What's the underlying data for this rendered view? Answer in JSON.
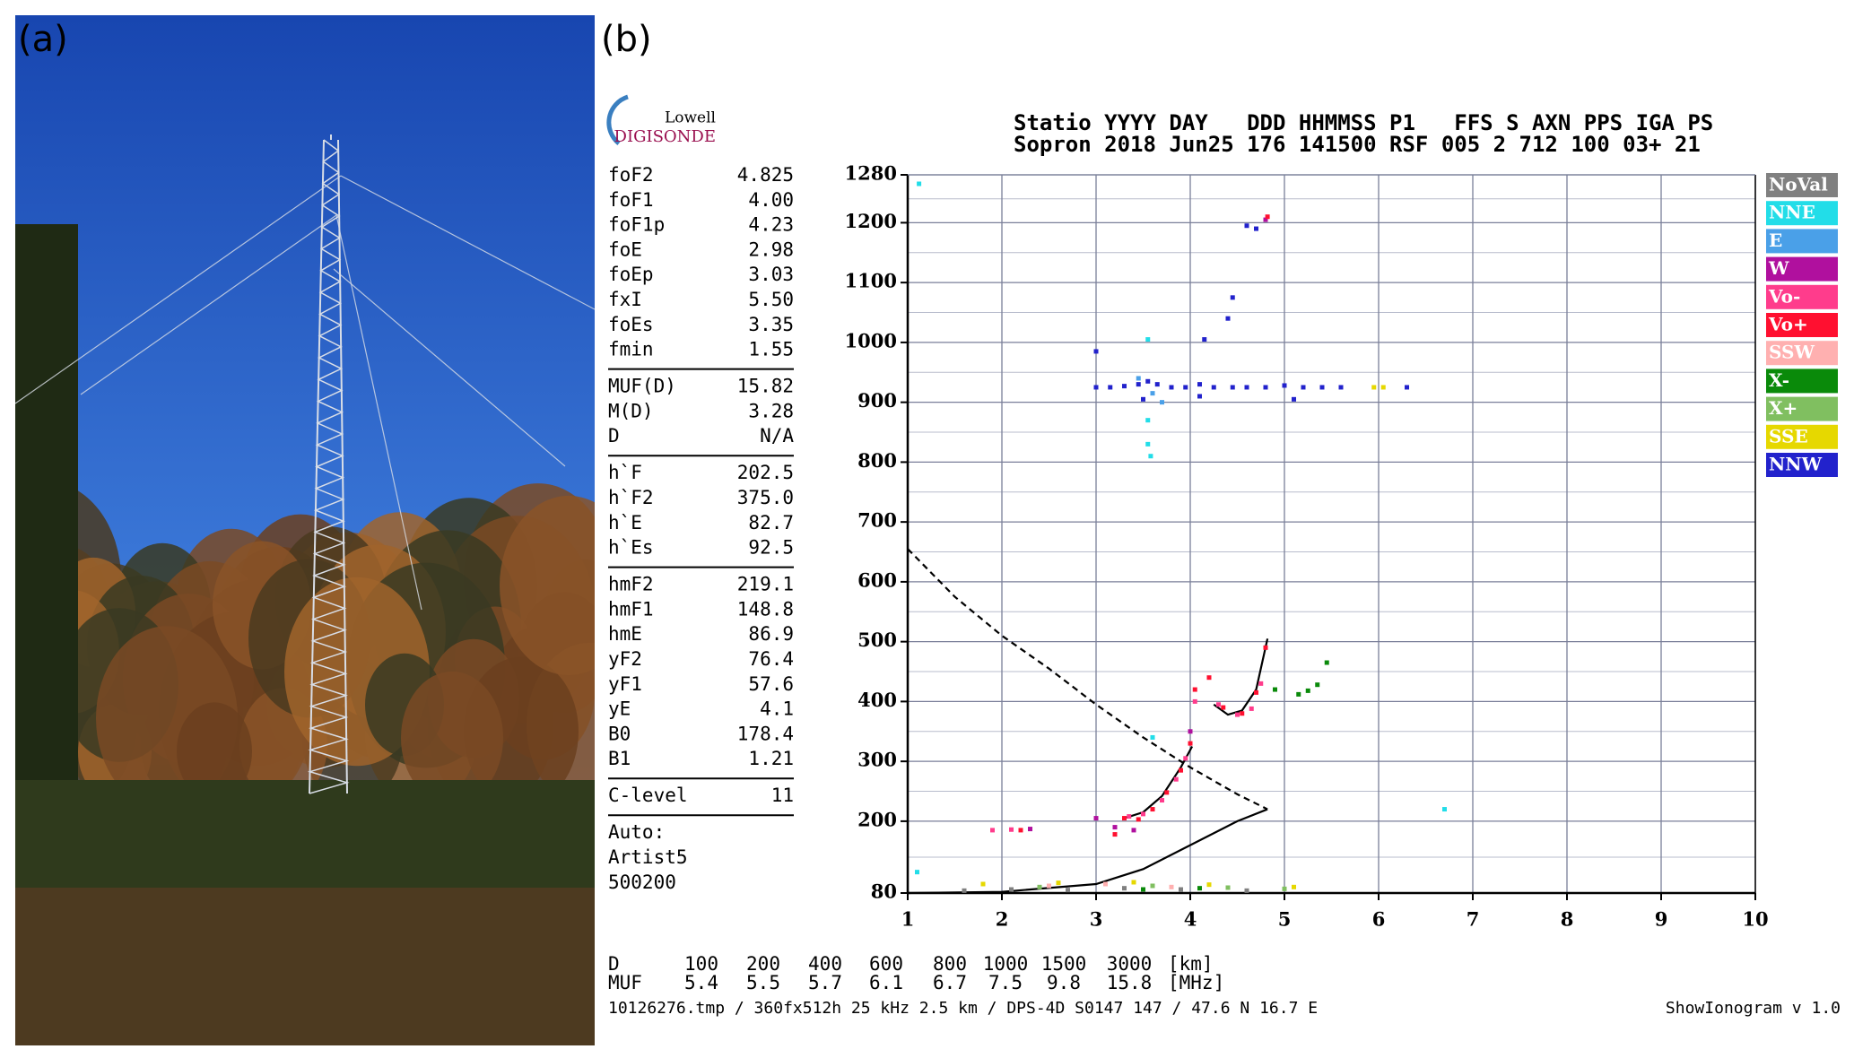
{
  "panel_labels": {
    "a": "(a)",
    "b": "(b)"
  },
  "logo": {
    "brand": "Lowell",
    "product": "DIGISONDE"
  },
  "header": {
    "line1": "Statio YYYY DAY   DDD HHMMSS P1   FFS S AXN PPS IGA PS",
    "line2": "Sopron 2018 Jun25 176 141500 RSF 005 2 712 100 03+ 21"
  },
  "parameters": [
    [
      [
        "foF2",
        "4.825"
      ],
      [
        "foF1",
        "4.00"
      ],
      [
        "foF1p",
        "4.23"
      ],
      [
        "foE",
        "2.98"
      ],
      [
        "foEp",
        "3.03"
      ],
      [
        "fxI",
        "5.50"
      ],
      [
        "foEs",
        "3.35"
      ],
      [
        "fmin",
        "1.55"
      ]
    ],
    [
      [
        "MUF(D)",
        "15.82"
      ],
      [
        "M(D)",
        "3.28"
      ],
      [
        "D",
        "N/A"
      ]
    ],
    [
      [
        "h`F",
        "202.5"
      ],
      [
        "h`F2",
        "375.0"
      ],
      [
        "h`E",
        "82.7"
      ],
      [
        "h`Es",
        "92.5"
      ]
    ],
    [
      [
        "hmF2",
        "219.1"
      ],
      [
        "hmF1",
        "148.8"
      ],
      [
        "hmE",
        "86.9"
      ],
      [
        "yF2",
        "76.4"
      ],
      [
        "yF1",
        "57.6"
      ],
      [
        "yE",
        "4.1"
      ],
      [
        "B0",
        "178.4"
      ],
      [
        "B1",
        "1.21"
      ]
    ],
    [
      [
        "C-level",
        "11"
      ]
    ]
  ],
  "autoscaling": [
    "Auto:",
    "Artist5",
    "500200"
  ],
  "chart_data": {
    "type": "scatter",
    "xlim": [
      1,
      10
    ],
    "xticks": [
      1,
      2,
      3,
      4,
      5,
      6,
      7,
      8,
      9,
      10
    ],
    "ylim": [
      80,
      1280
    ],
    "yticks": [
      80,
      200,
      300,
      400,
      500,
      600,
      700,
      800,
      900,
      1000,
      1100,
      1200,
      1280
    ],
    "grid": true,
    "legend": "right",
    "series": [
      {
        "name": "NoVal",
        "color": "#808080",
        "x": [
          1.6,
          2.1,
          2.7,
          3.3,
          3.9,
          4.6
        ],
        "values": [
          84,
          86,
          85,
          88,
          86,
          84
        ]
      },
      {
        "name": "NNE",
        "color": "#22dde8",
        "x": [
          1.12,
          3.55,
          3.55,
          3.55,
          3.58,
          3.6,
          6.7,
          1.1
        ],
        "values": [
          1265,
          1005,
          870,
          830,
          810,
          340,
          220,
          115
        ]
      },
      {
        "name": "E",
        "color": "#4aa0e8",
        "x": [
          3.45,
          3.6,
          3.7
        ],
        "values": [
          940,
          915,
          900
        ]
      },
      {
        "name": "W",
        "color": "#b0109e",
        "x": [
          3.0,
          3.2,
          3.4,
          4.0,
          4.8,
          2.3
        ],
        "values": [
          205,
          190,
          185,
          350,
          1205,
          187
        ]
      },
      {
        "name": "Vo-",
        "color": "#ff3c8c",
        "x": [
          3.35,
          3.5,
          3.7,
          3.85,
          3.95,
          4.05,
          4.3,
          4.5,
          4.65,
          4.75,
          1.9,
          2.1
        ],
        "values": [
          208,
          212,
          235,
          270,
          305,
          400,
          395,
          378,
          388,
          430,
          185,
          186
        ]
      },
      {
        "name": "Vo+",
        "color": "#ff1030",
        "x": [
          3.3,
          3.45,
          3.6,
          3.75,
          3.9,
          4.0,
          4.05,
          4.2,
          4.35,
          4.55,
          4.7,
          4.8,
          2.2,
          3.2,
          4.82
        ],
        "values": [
          205,
          203,
          220,
          248,
          285,
          330,
          420,
          440,
          390,
          380,
          415,
          490,
          185,
          178,
          1210
        ]
      },
      {
        "name": "SSW",
        "color": "#ffb0b0",
        "x": [
          2.5,
          3.1,
          3.8
        ],
        "values": [
          92,
          95,
          90
        ]
      },
      {
        "name": "X-",
        "color": "#0a8a0a",
        "x": [
          5.15,
          5.25,
          5.35,
          5.45,
          4.9,
          3.5,
          4.1
        ],
        "values": [
          412,
          418,
          428,
          465,
          420,
          86,
          88
        ]
      },
      {
        "name": "X+",
        "color": "#80bf60",
        "x": [
          2.4,
          3.6,
          4.4,
          5.0
        ],
        "values": [
          90,
          92,
          89,
          87
        ]
      },
      {
        "name": "SSE",
        "color": "#e6d800",
        "x": [
          1.8,
          2.6,
          3.4,
          4.2,
          5.1,
          5.95,
          6.05
        ],
        "values": [
          95,
          97,
          98,
          94,
          90,
          925,
          925
        ]
      },
      {
        "name": "NNW",
        "color": "#2222cc",
        "x": [
          3.0,
          3.15,
          3.3,
          3.45,
          3.55,
          3.65,
          3.8,
          3.95,
          4.1,
          4.25,
          4.45,
          4.6,
          4.8,
          5.0,
          5.2,
          5.4,
          5.6,
          6.3,
          4.15,
          4.4,
          4.45,
          4.6,
          4.7,
          3.0,
          3.5,
          4.1,
          5.1
        ],
        "values": [
          925,
          925,
          927,
          930,
          935,
          930,
          925,
          925,
          930,
          925,
          925,
          925,
          925,
          928,
          925,
          925,
          925,
          925,
          1005,
          1040,
          1075,
          1195,
          1190,
          985,
          905,
          910,
          905
        ]
      }
    ],
    "lines": [
      {
        "color": "#000000",
        "dash": true,
        "x": [
          1.0,
          1.5,
          2.0,
          2.5,
          3.0,
          3.5,
          4.0,
          4.5,
          4.82
        ],
        "values": [
          655,
          575,
          510,
          455,
          395,
          340,
          290,
          245,
          220
        ]
      },
      {
        "color": "#000000",
        "dash": false,
        "x": [
          1.0,
          2.0,
          3.0,
          3.5,
          4.0,
          4.5,
          4.82
        ],
        "values": [
          80,
          82,
          95,
          120,
          160,
          200,
          220
        ]
      },
      {
        "color": "#000000",
        "dash": false,
        "x": [
          3.3,
          3.5,
          3.7,
          3.9,
          4.02
        ],
        "values": [
          205,
          215,
          242,
          290,
          325
        ]
      },
      {
        "color": "#000000",
        "dash": false,
        "x": [
          4.25,
          4.4,
          4.55,
          4.7,
          4.82
        ],
        "values": [
          395,
          378,
          385,
          420,
          505
        ]
      }
    ]
  },
  "distance_muf": {
    "rows": [
      {
        "label": "D",
        "values": [
          "100",
          "200",
          "400",
          "600",
          "800",
          "1000",
          "1500",
          "3000"
        ],
        "unit": "[km]"
      },
      {
        "label": "MUF",
        "values": [
          "5.4",
          "5.5",
          "5.7",
          "6.1",
          "6.7",
          "7.5",
          "9.8",
          "15.8"
        ],
        "unit": "[MHz]"
      }
    ]
  },
  "footer": {
    "left": "10126276.tmp / 360fx512h 25 kHz 2.5 km / DPS-4D S0147 147 / 47.6 N 16.7 E",
    "right": "ShowIonogram v 1.0"
  }
}
